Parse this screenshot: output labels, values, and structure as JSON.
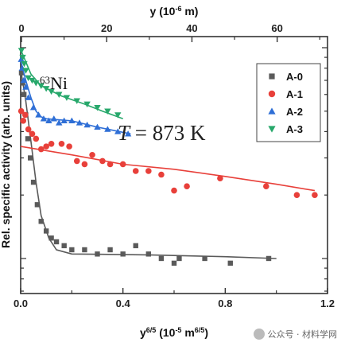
{
  "chart_data": {
    "type": "scatter",
    "title": "",
    "xlabel": "y6/5 (10-5 m6/5)",
    "xlabel_parts": {
      "base": "y",
      "sup": "6/5",
      "rest": " (10",
      "sup2": "-5",
      "rest2": " m",
      "sup3": "6/5",
      "end": ")"
    },
    "top_xlabel": "y (10-6 m)",
    "top_xlabel_parts": {
      "base": "y (10",
      "sup": "-6",
      "end": " m)"
    },
    "ylabel": "Rel. specific activity (arb. units)",
    "xlim": [
      0,
      1.2
    ],
    "ylim": [
      0,
      1
    ],
    "yscale": "log",
    "x_ticks": [
      "0.0",
      "0.4",
      "0.8",
      "1.2"
    ],
    "x_tick_values": [
      0,
      0.4,
      0.8,
      1.2
    ],
    "top_ticks": [
      "0",
      "20",
      "40",
      "60"
    ],
    "top_tick_values": [
      0,
      20,
      40,
      60
    ],
    "annotations": {
      "isotope_sup": "63",
      "isotope": "Ni",
      "temp_italic": "T",
      "temp_rest": " = 873 K"
    },
    "legend_position": "top-right",
    "series": [
      {
        "name": "A-0",
        "color": "#5a5a5a",
        "marker": "square",
        "points": [
          [
            0.003,
            0.76
          ],
          [
            0.008,
            0.68
          ],
          [
            0.013,
            0.6
          ],
          [
            0.02,
            0.48
          ],
          [
            0.028,
            0.37
          ],
          [
            0.038,
            0.3
          ],
          [
            0.05,
            0.23
          ],
          [
            0.065,
            0.18
          ],
          [
            0.08,
            0.15
          ],
          [
            0.1,
            0.135
          ],
          [
            0.12,
            0.125
          ],
          [
            0.14,
            0.12
          ],
          [
            0.17,
            0.115
          ],
          [
            0.2,
            0.11
          ],
          [
            0.25,
            0.11
          ],
          [
            0.3,
            0.105
          ],
          [
            0.35,
            0.11
          ],
          [
            0.4,
            0.105
          ],
          [
            0.45,
            0.115
          ],
          [
            0.5,
            0.105
          ],
          [
            0.55,
            0.1
          ],
          [
            0.6,
            0.095
          ],
          [
            0.62,
            0.1
          ],
          [
            0.72,
            0.1
          ],
          [
            0.82,
            0.095
          ],
          [
            0.97,
            0.1
          ]
        ],
        "fit": [
          [
            0.0,
            0.79
          ],
          [
            0.02,
            0.56
          ],
          [
            0.04,
            0.36
          ],
          [
            0.06,
            0.23
          ],
          [
            0.08,
            0.16
          ],
          [
            0.11,
            0.125
          ],
          [
            0.14,
            0.11
          ],
          [
            0.2,
            0.105
          ],
          [
            0.5,
            0.104
          ],
          [
            0.8,
            0.102
          ],
          [
            1.0,
            0.1
          ]
        ]
      },
      {
        "name": "A-1",
        "color": "#e8403a",
        "marker": "circle",
        "points": [
          [
            0.002,
            0.5
          ],
          [
            0.01,
            0.45
          ],
          [
            0.018,
            0.48
          ],
          [
            0.03,
            0.41
          ],
          [
            0.045,
            0.39
          ],
          [
            0.06,
            0.37
          ],
          [
            0.08,
            0.33
          ],
          [
            0.1,
            0.34
          ],
          [
            0.12,
            0.35
          ],
          [
            0.16,
            0.35
          ],
          [
            0.19,
            0.34
          ],
          [
            0.22,
            0.29
          ],
          [
            0.25,
            0.28
          ],
          [
            0.28,
            0.31
          ],
          [
            0.32,
            0.29
          ],
          [
            0.35,
            0.28
          ],
          [
            0.4,
            0.28
          ],
          [
            0.45,
            0.26
          ],
          [
            0.5,
            0.26
          ],
          [
            0.55,
            0.25
          ],
          [
            0.6,
            0.21
          ],
          [
            0.65,
            0.22
          ],
          [
            0.78,
            0.24
          ],
          [
            0.96,
            0.22
          ],
          [
            1.08,
            0.2
          ],
          [
            1.15,
            0.2
          ]
        ],
        "fit": [
          [
            0.0,
            0.34
          ],
          [
            0.2,
            0.31
          ],
          [
            0.4,
            0.28
          ],
          [
            0.6,
            0.265
          ],
          [
            0.8,
            0.245
          ],
          [
            1.0,
            0.225
          ],
          [
            1.15,
            0.21
          ]
        ]
      },
      {
        "name": "A-2",
        "color": "#2f6fd6",
        "marker": "triangle-up",
        "points": [
          [
            0.002,
            0.88
          ],
          [
            0.006,
            0.8
          ],
          [
            0.012,
            0.7
          ],
          [
            0.02,
            0.65
          ],
          [
            0.03,
            0.58
          ],
          [
            0.05,
            0.52
          ],
          [
            0.07,
            0.48
          ],
          [
            0.09,
            0.46
          ],
          [
            0.11,
            0.45
          ],
          [
            0.13,
            0.46
          ],
          [
            0.15,
            0.44
          ],
          [
            0.17,
            0.45
          ],
          [
            0.2,
            0.45
          ],
          [
            0.23,
            0.44
          ],
          [
            0.26,
            0.43
          ],
          [
            0.3,
            0.42
          ],
          [
            0.34,
            0.41
          ],
          [
            0.38,
            0.4
          ],
          [
            0.42,
            0.39
          ]
        ],
        "fit": [
          [
            0.0,
            0.87
          ],
          [
            0.02,
            0.7
          ],
          [
            0.04,
            0.58
          ],
          [
            0.06,
            0.5
          ],
          [
            0.08,
            0.47
          ],
          [
            0.1,
            0.46
          ],
          [
            0.2,
            0.45
          ],
          [
            0.3,
            0.42
          ],
          [
            0.43,
            0.39
          ]
        ]
      },
      {
        "name": "A-3",
        "color": "#27a86b",
        "marker": "triangle-down",
        "points": [
          [
            0.003,
            0.97
          ],
          [
            0.008,
            0.9
          ],
          [
            0.014,
            0.84
          ],
          [
            0.02,
            0.78
          ],
          [
            0.03,
            0.72
          ],
          [
            0.045,
            0.7
          ],
          [
            0.06,
            0.68
          ],
          [
            0.08,
            0.66
          ],
          [
            0.1,
            0.64
          ],
          [
            0.12,
            0.62
          ],
          [
            0.15,
            0.6
          ],
          [
            0.18,
            0.58
          ],
          [
            0.22,
            0.56
          ],
          [
            0.26,
            0.54
          ],
          [
            0.3,
            0.52
          ],
          [
            0.34,
            0.5
          ],
          [
            0.38,
            0.48
          ]
        ],
        "fit": [
          [
            0.0,
            0.98
          ],
          [
            0.04,
            0.75
          ],
          [
            0.08,
            0.66
          ],
          [
            0.16,
            0.59
          ],
          [
            0.25,
            0.54
          ],
          [
            0.32,
            0.5
          ],
          [
            0.4,
            0.46
          ]
        ]
      }
    ]
  }
}
